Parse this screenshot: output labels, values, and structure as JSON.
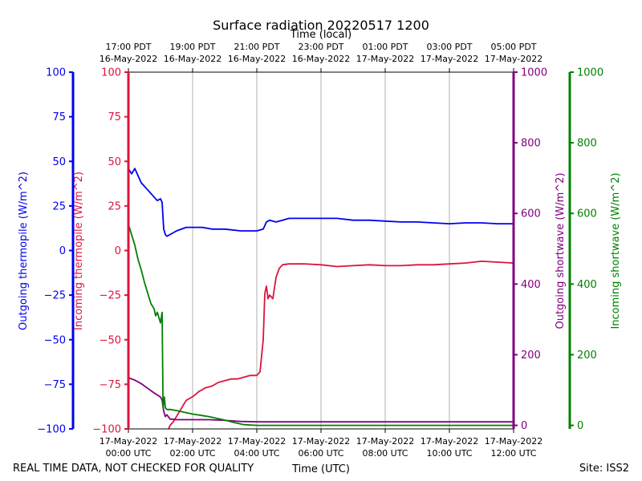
{
  "chart_data": {
    "type": "line",
    "title": "Surface radiation 20220517 1200",
    "top_axis_label": "Time (local)",
    "xlabel": "Time (UTC)",
    "footer_left": "REAL TIME DATA, NOT CHECKED FOR QUALITY",
    "footer_right": "Site: ISS2",
    "x_unit": "hours since 17-May-2022 00:00 UTC",
    "xlim": [
      0,
      12
    ],
    "x_ticks": [
      {
        "x": 0,
        "line1": "17-May-2022",
        "line2": "00:00 UTC"
      },
      {
        "x": 2,
        "line1": "17-May-2022",
        "line2": "02:00 UTC"
      },
      {
        "x": 4,
        "line1": "17-May-2022",
        "line2": "04:00 UTC"
      },
      {
        "x": 6,
        "line1": "17-May-2022",
        "line2": "06:00 UTC"
      },
      {
        "x": 8,
        "line1": "17-May-2022",
        "line2": "08:00 UTC"
      },
      {
        "x": 10,
        "line1": "17-May-2022",
        "line2": "10:00 UTC"
      },
      {
        "x": 12,
        "line1": "17-May-2022",
        "line2": "12:00 UTC"
      }
    ],
    "top_ticks": [
      {
        "x": 0,
        "line1": "17:00 PDT",
        "line2": "16-May-2022"
      },
      {
        "x": 2,
        "line1": "19:00 PDT",
        "line2": "16-May-2022"
      },
      {
        "x": 4,
        "line1": "21:00 PDT",
        "line2": "16-May-2022"
      },
      {
        "x": 6,
        "line1": "23:00 PDT",
        "line2": "16-May-2022"
      },
      {
        "x": 8,
        "line1": "01:00 PDT",
        "line2": "17-May-2022"
      },
      {
        "x": 10,
        "line1": "03:00 PDT",
        "line2": "17-May-2022"
      },
      {
        "x": 12,
        "line1": "05:00 PDT",
        "line2": "17-May-2022"
      }
    ],
    "axes": {
      "outgoing_thermopile": {
        "label": "Outgoing thermopile (W/m^2)",
        "color": "#0000ee",
        "ylim": [
          -100,
          100
        ],
        "ticks": [
          "100",
          "75",
          "50",
          "25",
          "0",
          "−25",
          "−50",
          "−75",
          "−100"
        ]
      },
      "incoming_thermopile": {
        "label": "Incoming thermopile (W/m^2)",
        "color": "#dc143c",
        "ylim": [
          -100,
          100
        ],
        "ticks": [
          "100",
          "75",
          "50",
          "25",
          "0",
          "−25",
          "−50",
          "−75",
          "−100"
        ]
      },
      "outgoing_shortwave": {
        "label": "Outgoing shortwave (W/m^2)",
        "color": "#800080",
        "ylim": [
          -10,
          1000
        ],
        "ticks": [
          "1000",
          "800",
          "600",
          "400",
          "200",
          "0"
        ]
      },
      "incoming_shortwave": {
        "label": "Incoming shortwave (W/m^2)",
        "color": "#008000",
        "ylim": [
          -10,
          1000
        ],
        "ticks": [
          "1000",
          "800",
          "600",
          "400",
          "200",
          "0"
        ]
      }
    },
    "series": [
      {
        "name": "Outgoing thermopile",
        "axis": "outgoing_thermopile",
        "color": "#0000ee",
        "x": [
          0,
          0.1,
          0.2,
          0.3,
          0.4,
          0.5,
          0.6,
          0.7,
          0.8,
          0.9,
          1.0,
          1.05,
          1.1,
          1.15,
          1.2,
          1.3,
          1.5,
          1.8,
          2.0,
          2.3,
          2.6,
          3.0,
          3.5,
          4.0,
          4.2,
          4.3,
          4.4,
          4.6,
          4.8,
          5.0,
          5.5,
          6.0,
          6.5,
          7.0,
          7.5,
          8.0,
          8.5,
          9.0,
          9.5,
          10.0,
          10.5,
          11.0,
          11.5,
          12.0
        ],
        "values": [
          46,
          43,
          46,
          42,
          38,
          36,
          34,
          32,
          30,
          28,
          29,
          27,
          12,
          9,
          8,
          9,
          11,
          13,
          13,
          13,
          12,
          12,
          11,
          11,
          12,
          16,
          17,
          16,
          17,
          18,
          18,
          18,
          18,
          17,
          17,
          16.5,
          16,
          16,
          15.5,
          15,
          15.5,
          15.5,
          15,
          15
        ]
      },
      {
        "name": "Incoming thermopile",
        "axis": "incoming_thermopile",
        "color": "#dc143c",
        "x": [
          1.25,
          1.3,
          1.4,
          1.5,
          1.6,
          1.7,
          1.8,
          2.0,
          2.2,
          2.4,
          2.6,
          2.8,
          3.0,
          3.2,
          3.4,
          3.6,
          3.8,
          4.0,
          4.1,
          4.2,
          4.25,
          4.3,
          4.35,
          4.4,
          4.5,
          4.6,
          4.7,
          4.8,
          5.0,
          5.5,
          6.0,
          6.5,
          7.0,
          7.5,
          8.0,
          8.5,
          9.0,
          9.5,
          10.0,
          10.5,
          11.0,
          11.5,
          12.0
        ],
        "values": [
          -100,
          -98,
          -96,
          -93,
          -90,
          -87,
          -84,
          -82,
          -79,
          -77,
          -76,
          -74,
          -73,
          -72,
          -72,
          -71,
          -70,
          -70,
          -68,
          -50,
          -24,
          -20,
          -27,
          -25,
          -27,
          -15,
          -10,
          -8,
          -7.5,
          -7.5,
          -8,
          -9,
          -8.5,
          -8,
          -8.5,
          -8.5,
          -8,
          -8,
          -7.5,
          -7,
          -6,
          -6.5,
          -7
        ]
      },
      {
        "name": "Outgoing shortwave",
        "axis": "outgoing_shortwave",
        "color": "#800080",
        "x": [
          0,
          0.2,
          0.4,
          0.6,
          0.8,
          1.0,
          1.05,
          1.1,
          1.15,
          1.2,
          1.3,
          1.5,
          2.0,
          2.5,
          3.0,
          3.5,
          4.0,
          5.0,
          6.0,
          8.0,
          10.0,
          12.0
        ],
        "values": [
          135,
          128,
          118,
          105,
          92,
          80,
          72,
          40,
          25,
          30,
          18,
          16,
          16,
          16,
          14,
          11,
          10,
          10,
          10,
          10,
          10,
          10
        ]
      },
      {
        "name": "Incoming shortwave",
        "axis": "incoming_shortwave",
        "color": "#008000",
        "x": [
          0,
          0.1,
          0.2,
          0.3,
          0.4,
          0.5,
          0.6,
          0.7,
          0.8,
          0.85,
          0.9,
          1.0,
          1.05,
          1.08,
          1.12,
          1.15,
          1.2,
          1.3,
          1.5,
          2.0,
          2.5,
          3.0,
          3.3,
          3.6,
          4.0,
          4.2,
          4.5,
          5.0,
          6.0,
          8.0,
          10.0,
          12.0
        ],
        "values": [
          570,
          540,
          510,
          470,
          440,
          405,
          375,
          345,
          330,
          310,
          320,
          290,
          320,
          50,
          80,
          50,
          45,
          45,
          42,
          32,
          25,
          15,
          8,
          2,
          0,
          0,
          0,
          0,
          0,
          0,
          0,
          0
        ]
      }
    ]
  }
}
